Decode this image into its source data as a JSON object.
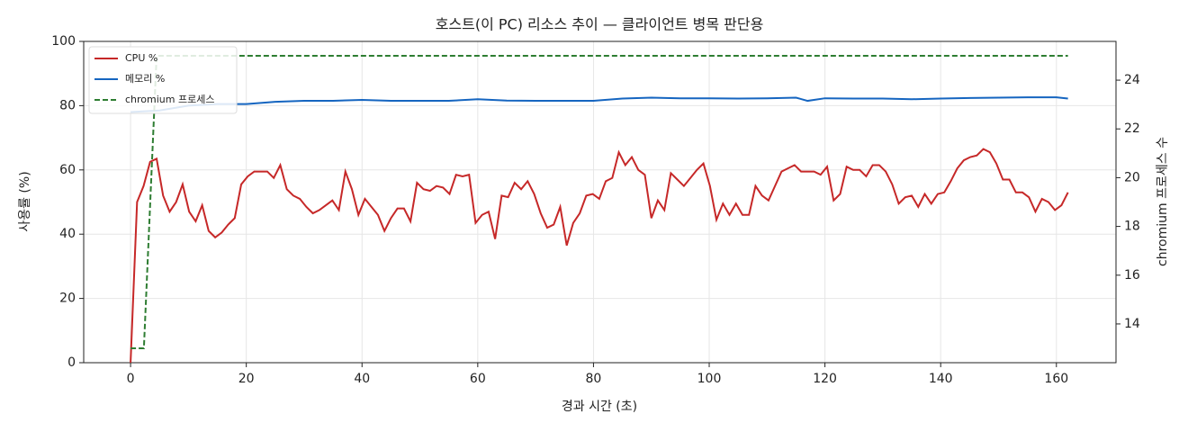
{
  "chart_data": {
    "type": "line",
    "title": "호스트(이 PC) 리소스 추이 — 클라이언트 병목 판단용",
    "x_label": "경과 시간 (초)",
    "y_label": "사용률 (%)",
    "y2_label": "chromium 프로세스 수",
    "xlim": [
      -8.1,
      170.3
    ],
    "xticks": [
      0,
      20,
      40,
      60,
      80,
      100,
      120,
      140,
      160
    ],
    "ylim": [
      0,
      100
    ],
    "yticks": [
      0,
      20,
      40,
      60,
      80,
      100
    ],
    "y2lim": [
      12.41,
      25.59
    ],
    "y2ticks": [
      14,
      16,
      18,
      20,
      22,
      24
    ],
    "grid": true,
    "legend": "upper left",
    "series": [
      {
        "name": "CPU %",
        "color": "#c62828",
        "axis": "y",
        "linestyle": "solid",
        "x": [
          0,
          1.125,
          2.25,
          3.375,
          4.5,
          5.625,
          6.75,
          7.875,
          9,
          10.125,
          11.25,
          12.375,
          13.5,
          14.625,
          15.75,
          16.875,
          18,
          19.125,
          20.25,
          21.375,
          22.5,
          23.625,
          24.75,
          25.875,
          27,
          28.125,
          29.25,
          30.375,
          31.5,
          32.625,
          33.75,
          34.875,
          36,
          37.125,
          38.25,
          39.375,
          40.5,
          41.625,
          42.75,
          43.875,
          45,
          46.125,
          47.25,
          48.375,
          49.5,
          50.625,
          51.75,
          52.875,
          54,
          55.125,
          56.25,
          57.375,
          58.5,
          59.625,
          60.75,
          61.875,
          63,
          64.125,
          65.25,
          66.375,
          67.5,
          68.625,
          69.75,
          70.875,
          72,
          73.125,
          74.25,
          75.375,
          76.5,
          77.625,
          78.75,
          79.875,
          81,
          82.125,
          83.25,
          84.375,
          85.5,
          86.625,
          87.75,
          88.875,
          90,
          91.125,
          92.25,
          93.375,
          94.5,
          95.625,
          96.75,
          97.875,
          99,
          100.125,
          101.25,
          102.375,
          103.5,
          104.625,
          105.75,
          106.875,
          108,
          109.125,
          110.25,
          111.375,
          112.5,
          113.625,
          114.75,
          115.875,
          117,
          118.125,
          119.25,
          120.375,
          121.5,
          122.625,
          123.75,
          124.875,
          126,
          127.125,
          128.25,
          129.375,
          130.5,
          131.625,
          132.75,
          133.875,
          135,
          136.125,
          137.25,
          138.375,
          139.5,
          140.625,
          141.75,
          142.875,
          144,
          145.125,
          146.25,
          147.375,
          148.5,
          149.625,
          150.75,
          151.875,
          153,
          154.125,
          155.25,
          156.375,
          157.5,
          158.625,
          159.75,
          160.875,
          162
        ],
        "values": [
          0,
          50,
          55,
          62.5,
          63.5,
          52,
          47,
          50,
          55.5,
          47,
          44,
          49,
          41,
          39,
          40.5,
          43,
          45,
          55.5,
          58,
          59.5,
          59.5,
          59.5,
          57.5,
          61.5,
          54,
          52,
          51,
          48.5,
          46.5,
          47.5,
          49,
          50.5,
          47.5,
          59.5,
          54,
          46,
          51,
          48.5,
          46,
          41,
          45,
          48,
          48,
          44,
          56,
          54,
          53.5,
          55,
          54.5,
          52.5,
          58.5,
          58,
          58.5,
          43.5,
          46,
          47,
          38.5,
          52,
          51.5,
          56,
          54,
          56.5,
          52.5,
          46.5,
          42,
          43,
          48.5,
          36.5,
          43.5,
          46.5,
          52,
          52.5,
          51,
          56.5,
          57.5,
          65.5,
          61.5,
          64,
          60,
          58.5,
          45,
          50.5,
          47.5,
          59,
          57,
          55,
          57.5,
          60,
          62,
          55,
          44.5,
          49.5,
          46,
          49.5,
          46,
          46,
          55,
          52,
          50.5,
          55,
          59.5,
          60.5,
          61.5,
          59.5,
          59.5,
          59.5,
          58.5,
          61,
          50.5,
          52.5,
          61,
          60,
          60,
          58,
          61.5,
          61.5,
          59.5,
          55.5,
          49.5,
          51.5,
          52,
          48.5,
          52.5,
          49.5,
          52.5,
          53,
          56.5,
          60.5,
          63,
          64,
          64.5,
          66.5,
          65.5,
          62,
          57,
          57,
          53,
          53,
          51.5,
          47,
          51,
          50,
          47.5,
          49,
          53
        ]
      },
      {
        "name": "메모리 %",
        "color": "#1565c0",
        "axis": "y",
        "linestyle": "solid",
        "x": [
          0,
          5,
          10,
          15,
          20,
          25,
          30,
          35,
          40,
          45,
          50,
          55,
          60,
          65,
          70,
          75,
          80,
          85,
          90,
          95,
          100,
          105,
          110,
          115,
          117,
          120,
          125,
          130,
          135,
          140,
          145,
          150,
          155,
          160,
          162
        ],
        "values": [
          78,
          78.5,
          80,
          80.5,
          80.5,
          81.2,
          81.5,
          81.5,
          81.8,
          81.5,
          81.5,
          81.5,
          82,
          81.6,
          81.5,
          81.5,
          81.5,
          82.2,
          82.5,
          82.3,
          82.3,
          82.2,
          82.3,
          82.5,
          81.5,
          82.3,
          82.2,
          82.2,
          82,
          82.2,
          82.4,
          82.5,
          82.6,
          82.6,
          82.2
        ]
      },
      {
        "name": "chromium 프로세스",
        "color": "#2e7d32",
        "axis": "y2",
        "linestyle": "dashed",
        "x": [
          0,
          2.3,
          4.5,
          162
        ],
        "values": [
          13,
          13,
          25,
          25
        ]
      }
    ]
  }
}
